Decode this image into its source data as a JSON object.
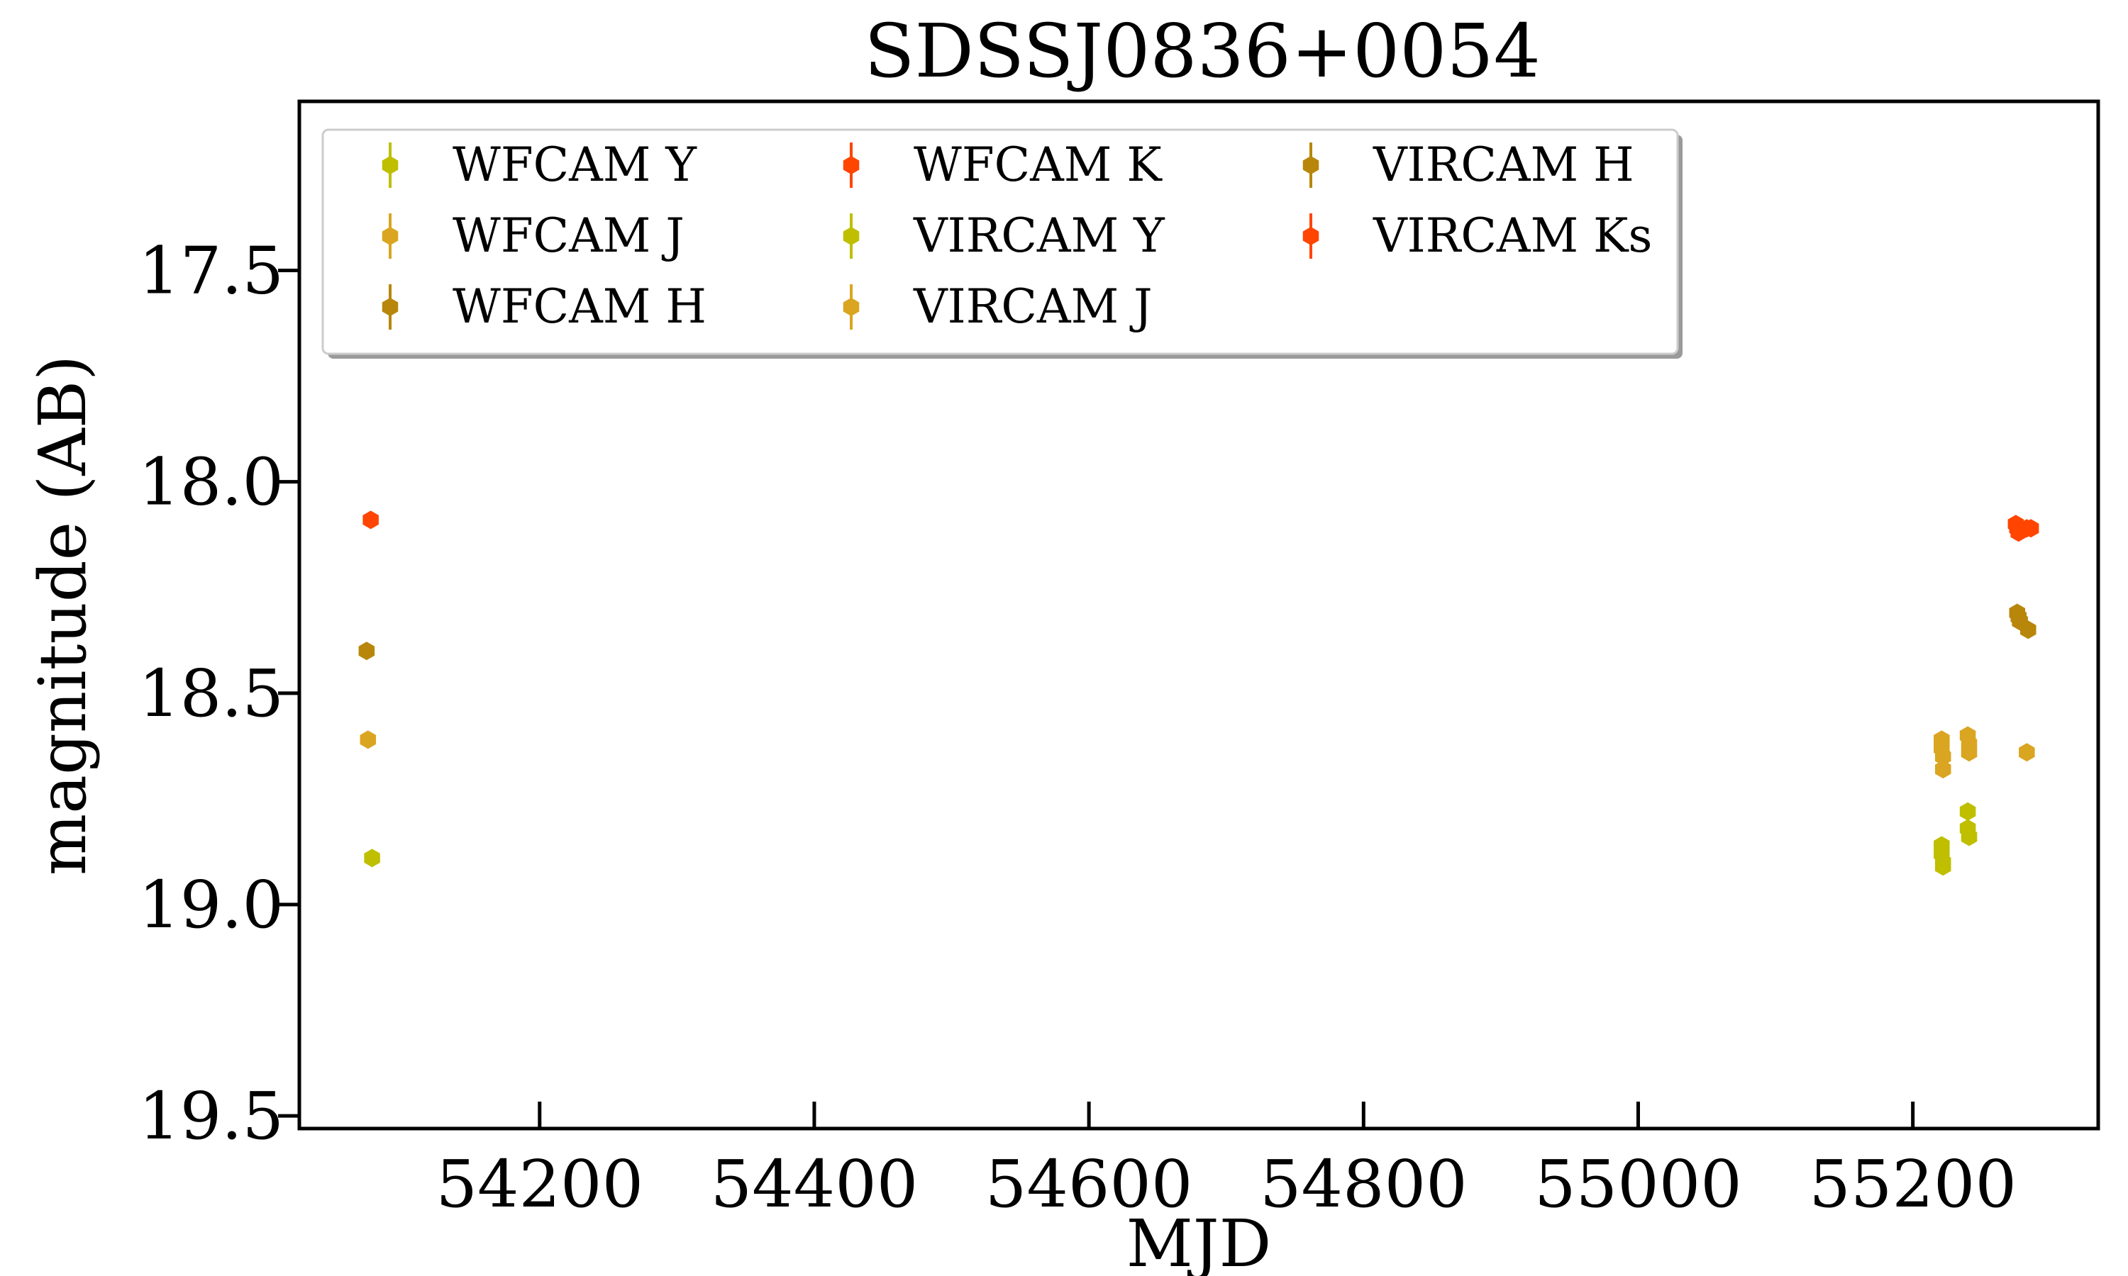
{
  "chart_data": {
    "type": "scatter",
    "title": "SDSSJ0836+0054",
    "xlabel": "MJD",
    "ylabel": "magnitude (AB)",
    "xlim": [
      54025,
      55335
    ],
    "ylim": [
      19.53,
      17.1
    ],
    "y_inverted": true,
    "xticks": [
      54200,
      54400,
      54600,
      54800,
      55000,
      55200
    ],
    "xtick_labels": [
      "54200",
      "54400",
      "54600",
      "54800",
      "55000",
      "55200"
    ],
    "yticks": [
      17.5,
      18.0,
      18.5,
      19.0,
      19.5
    ],
    "ytick_labels": [
      "17.5",
      "18.0",
      "18.5",
      "19.0",
      "19.5"
    ],
    "grid": false,
    "legend": {
      "position": "top-left",
      "columns": 3
    },
    "series": [
      {
        "name": "WFCAM Y",
        "color": "#bfbf00",
        "points": [
          {
            "x": 54078,
            "y": 18.89,
            "err": 0.02
          }
        ]
      },
      {
        "name": "WFCAM J",
        "color": "#daa520",
        "points": [
          {
            "x": 54075,
            "y": 18.61,
            "err": 0.02
          }
        ]
      },
      {
        "name": "WFCAM H",
        "color": "#b8860b",
        "points": [
          {
            "x": 54074,
            "y": 18.4,
            "err": 0.02
          }
        ]
      },
      {
        "name": "WFCAM K",
        "color": "#ff4500",
        "points": [
          {
            "x": 54077,
            "y": 18.09,
            "err": 0.02
          }
        ]
      },
      {
        "name": "VIRCAM Y",
        "color": "#bfbf00",
        "points": [
          {
            "x": 55221,
            "y": 18.86,
            "err": 0.02
          },
          {
            "x": 55221,
            "y": 18.88,
            "err": 0.02
          },
          {
            "x": 55222,
            "y": 18.9,
            "err": 0.02
          },
          {
            "x": 55222,
            "y": 18.91,
            "err": 0.02
          },
          {
            "x": 55240,
            "y": 18.78,
            "err": 0.02
          },
          {
            "x": 55240,
            "y": 18.82,
            "err": 0.02
          },
          {
            "x": 55241,
            "y": 18.84,
            "err": 0.02
          }
        ]
      },
      {
        "name": "VIRCAM J",
        "color": "#daa520",
        "points": [
          {
            "x": 55221,
            "y": 18.61,
            "err": 0.02
          },
          {
            "x": 55221,
            "y": 18.63,
            "err": 0.02
          },
          {
            "x": 55222,
            "y": 18.65,
            "err": 0.02
          },
          {
            "x": 55222,
            "y": 18.68,
            "err": 0.02
          },
          {
            "x": 55240,
            "y": 18.6,
            "err": 0.02
          },
          {
            "x": 55241,
            "y": 18.62,
            "err": 0.02
          },
          {
            "x": 55241,
            "y": 18.64,
            "err": 0.02
          },
          {
            "x": 55283,
            "y": 18.64,
            "err": 0.02
          }
        ]
      },
      {
        "name": "VIRCAM H",
        "color": "#b8860b",
        "points": [
          {
            "x": 55276,
            "y": 18.31,
            "err": 0.02
          },
          {
            "x": 55277,
            "y": 18.32,
            "err": 0.02
          },
          {
            "x": 55278,
            "y": 18.33,
            "err": 0.02
          },
          {
            "x": 55284,
            "y": 18.35,
            "err": 0.02
          }
        ]
      },
      {
        "name": "VIRCAM Ks",
        "color": "#ff4500",
        "points": [
          {
            "x": 55275,
            "y": 18.1,
            "err": 0.02
          },
          {
            "x": 55276,
            "y": 18.11,
            "err": 0.02
          },
          {
            "x": 55277,
            "y": 18.12,
            "err": 0.02
          },
          {
            "x": 55283,
            "y": 18.11,
            "err": 0.02
          },
          {
            "x": 55286,
            "y": 18.11,
            "err": 0.02
          }
        ]
      }
    ]
  }
}
